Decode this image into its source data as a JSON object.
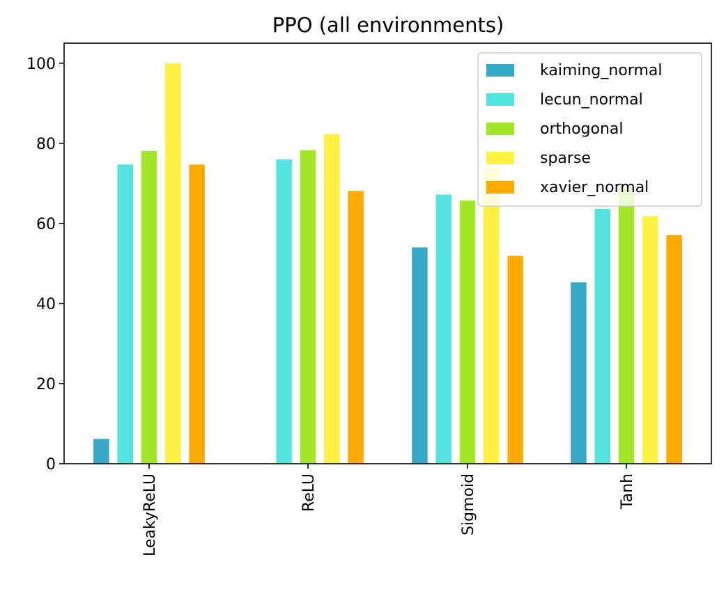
{
  "chart_data": {
    "type": "bar",
    "title": "PPO (all environments)",
    "xlabel": "",
    "ylabel": "",
    "categories": [
      "LeakyReLU",
      "ReLU",
      "Sigmoid",
      "Tanh"
    ],
    "series": [
      {
        "name": "kaiming_normal",
        "color": "#36A9C8",
        "values": [
          6.2,
          null,
          54.0,
          45.3
        ]
      },
      {
        "name": "lecun_normal",
        "color": "#52E3DF",
        "values": [
          74.7,
          76.0,
          67.2,
          63.6
        ]
      },
      {
        "name": "orthogonal",
        "color": "#A2E628",
        "values": [
          78.1,
          78.3,
          65.7,
          69.3
        ]
      },
      {
        "name": "sparse",
        "color": "#FFF141",
        "values": [
          100.0,
          82.3,
          73.9,
          61.8
        ]
      },
      {
        "name": "xavier_normal",
        "color": "#FFAA00",
        "values": [
          74.7,
          68.1,
          51.9,
          57.1
        ]
      }
    ],
    "ylim": [
      0,
      105
    ],
    "yticks": [
      0,
      20,
      40,
      60,
      80,
      100
    ],
    "xtick_rotation": "vertical",
    "grid": false,
    "legend_position": "top-right"
  }
}
